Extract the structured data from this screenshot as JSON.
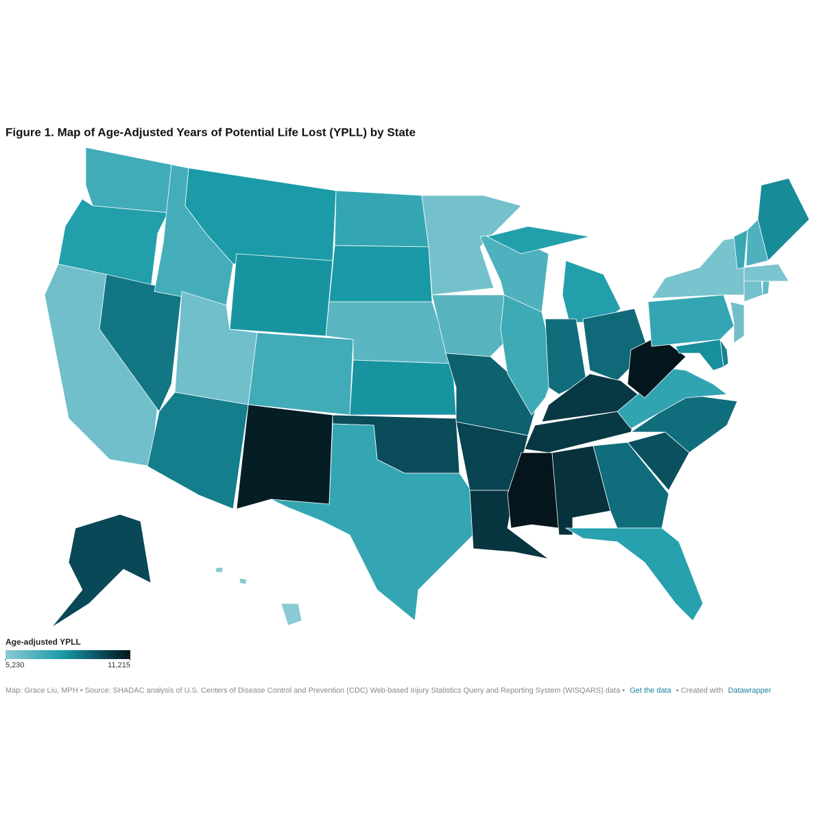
{
  "chart_data": {
    "type": "choropleth",
    "title": "Figure 1. Map of Age-Adjusted Years of Potential Life Lost (YPLL) by State",
    "legend_title": "Age-adjusted YPLL",
    "legend_ticks": [
      {
        "value": 5230,
        "label": "5,230"
      },
      {
        "value": 11215,
        "label": "11,215"
      }
    ],
    "values": [
      7000,
      7700,
      5900,
      8800,
      6900,
      7900,
      8100,
      5900,
      7000,
      8600,
      11000,
      7300,
      8000,
      6400,
      8100,
      9800,
      7300,
      5800,
      6500,
      9300,
      10000,
      10400,
      6700,
      7100,
      7700,
      9000,
      9100,
      10300,
      10300,
      11215,
      10500,
      9000,
      7600,
      9700,
      9000,
      7400,
      11200,
      8200,
      8500,
      7300,
      5700,
      5900,
      5800,
      6200,
      5600,
      7200,
      6700,
      8300,
      9900,
      5300
    ],
    "footer": {
      "credit": "Map: Grace Liu, MPH • Source: SHADAC analysis of U.S. Centers of Disease Control and Prevention (CDC) Web-based Injury Statistics Query and Reporting System (WISQARS) data •",
      "get_data": "Get the data",
      "created_with": "• Created with",
      "tool": "Datawrapper"
    }
  }
}
